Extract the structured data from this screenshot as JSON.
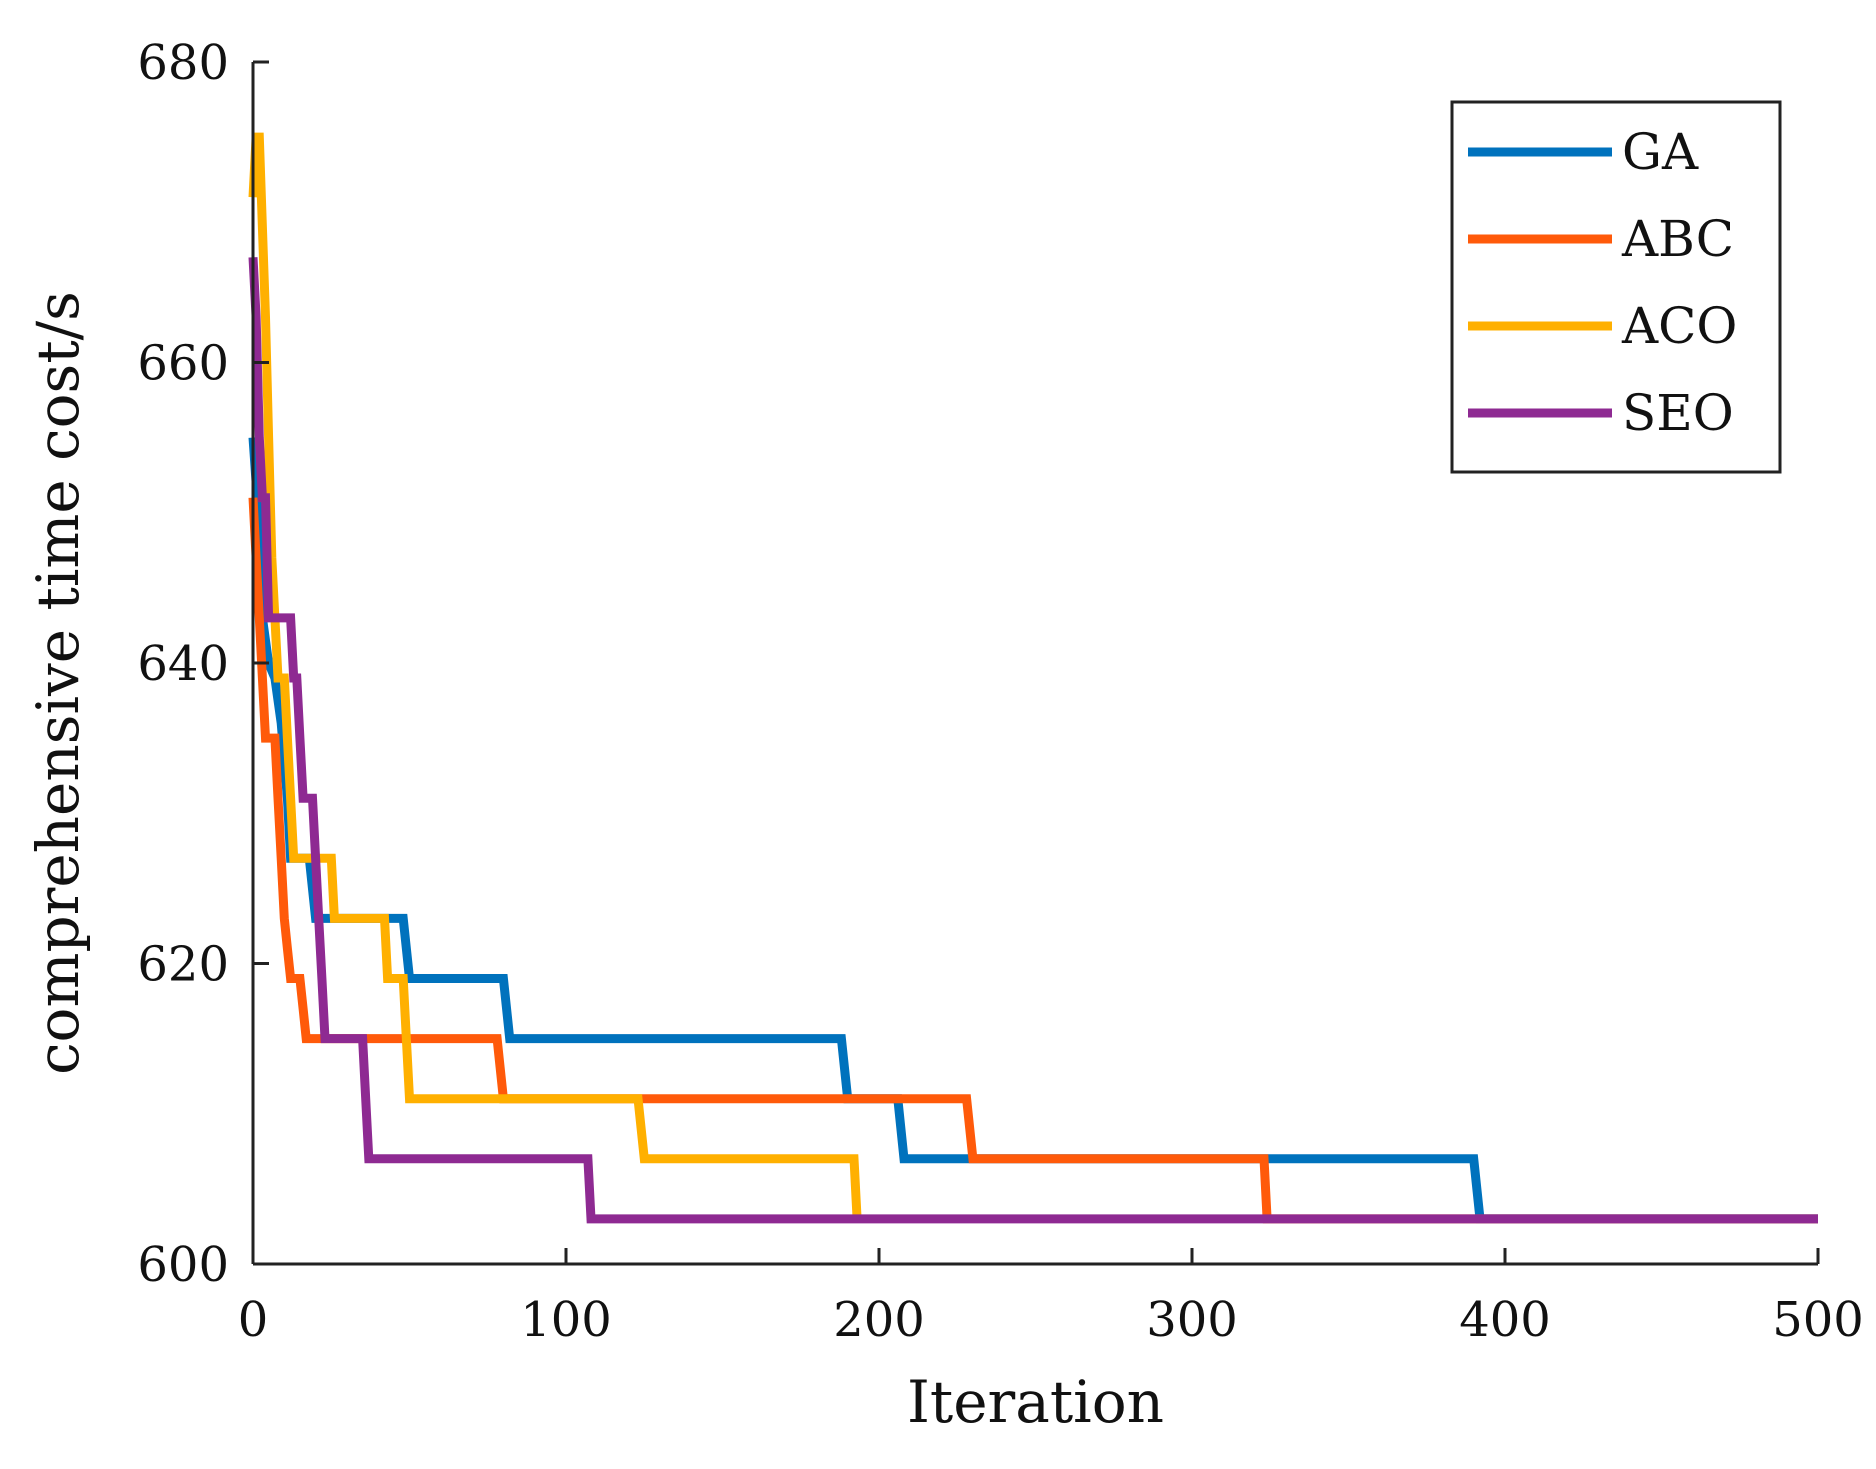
{
  "chart_data": {
    "type": "line",
    "xlabel": "Iteration",
    "ylabel": "comprehensive time cost/s",
    "xlim": [
      0,
      500
    ],
    "ylim": [
      600,
      680
    ],
    "xticks": [
      "0",
      "100",
      "200",
      "300",
      "400",
      "500"
    ],
    "yticks": [
      "600",
      "620",
      "640",
      "660",
      "680"
    ],
    "legend_position": "top-right",
    "grid": false,
    "series": [
      {
        "name": "GA",
        "color": "#0072BD",
        "points": [
          [
            0,
            655
          ],
          [
            1,
            652
          ],
          [
            2,
            647
          ],
          [
            3,
            643
          ],
          [
            5,
            640
          ],
          [
            7,
            639
          ],
          [
            9,
            636
          ],
          [
            11,
            631
          ],
          [
            12,
            627
          ],
          [
            18,
            627
          ],
          [
            20,
            623
          ],
          [
            48,
            623
          ],
          [
            50,
            619
          ],
          [
            80,
            619
          ],
          [
            82,
            615
          ],
          [
            188,
            615
          ],
          [
            190,
            611
          ],
          [
            206,
            611
          ],
          [
            208,
            607
          ],
          [
            390,
            607
          ],
          [
            392,
            603
          ],
          [
            500,
            603
          ]
        ]
      },
      {
        "name": "ABC",
        "color": "#FF5A0A",
        "points": [
          [
            0,
            651
          ],
          [
            1,
            647
          ],
          [
            2,
            643
          ],
          [
            3,
            639
          ],
          [
            4,
            635
          ],
          [
            7,
            635
          ],
          [
            8,
            631
          ],
          [
            9,
            627
          ],
          [
            10,
            623
          ],
          [
            11,
            621
          ],
          [
            12,
            619
          ],
          [
            15,
            619
          ],
          [
            16,
            617
          ],
          [
            17,
            615
          ],
          [
            78,
            615
          ],
          [
            80,
            611
          ],
          [
            228,
            611
          ],
          [
            230,
            607
          ],
          [
            323,
            607
          ],
          [
            324,
            603
          ],
          [
            500,
            603
          ]
        ]
      },
      {
        "name": "ACO",
        "color": "#FFB000",
        "points": [
          [
            0,
            671
          ],
          [
            1,
            675
          ],
          [
            2,
            675
          ],
          [
            3,
            669
          ],
          [
            4,
            663
          ],
          [
            5,
            655
          ],
          [
            6,
            647
          ],
          [
            7,
            643
          ],
          [
            8,
            639
          ],
          [
            10,
            639
          ],
          [
            11,
            635
          ],
          [
            12,
            631
          ],
          [
            13,
            627
          ],
          [
            25,
            627
          ],
          [
            26,
            623
          ],
          [
            42,
            623
          ],
          [
            43,
            619
          ],
          [
            48,
            619
          ],
          [
            50,
            611
          ],
          [
            123,
            611
          ],
          [
            125,
            607
          ],
          [
            192,
            607
          ],
          [
            193,
            603
          ]
        ]
      },
      {
        "name": "SEO",
        "color": "#8E2A92",
        "points": [
          [
            0,
            667
          ],
          [
            1,
            663
          ],
          [
            2,
            655
          ],
          [
            3,
            651
          ],
          [
            4,
            651
          ],
          [
            5,
            643
          ],
          [
            12,
            643
          ],
          [
            13,
            639
          ],
          [
            14,
            639
          ],
          [
            15,
            635
          ],
          [
            16,
            631
          ],
          [
            19,
            631
          ],
          [
            20,
            627
          ],
          [
            21,
            623
          ],
          [
            22,
            619
          ],
          [
            23,
            615
          ],
          [
            35,
            615
          ],
          [
            37,
            607
          ],
          [
            107,
            607
          ],
          [
            108,
            603
          ],
          [
            500,
            603
          ]
        ]
      }
    ]
  }
}
